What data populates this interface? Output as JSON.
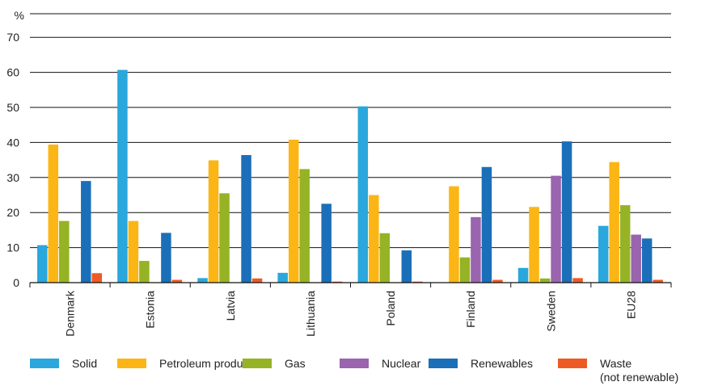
{
  "chart_data": {
    "type": "bar",
    "ylabel": "%",
    "ylim": [
      0,
      75
    ],
    "yticks": [
      0,
      10,
      20,
      30,
      40,
      50,
      60,
      70
    ],
    "grid": true,
    "legend_position": "bottom",
    "categories": [
      "Denmark",
      "Estonia",
      "Latvia",
      "Lithuania",
      "Poland",
      "Finland",
      "Sweden",
      "EU28"
    ],
    "series": [
      {
        "name": "Solid",
        "name_line2": "",
        "color": "#2aa7dc",
        "values": [
          10.7,
          60.7,
          1.3,
          2.8,
          50.3,
          0,
          4.2,
          16.2
        ]
      },
      {
        "name": "Petroleum products",
        "name_line2": "",
        "color": "#fbb615",
        "values": [
          39.4,
          17.6,
          34.9,
          40.8,
          25.0,
          27.5,
          21.6,
          34.4
        ]
      },
      {
        "name": "Gas",
        "name_line2": "",
        "color": "#95b324",
        "values": [
          17.6,
          6.2,
          25.5,
          32.4,
          14.1,
          7.2,
          1.2,
          22.1
        ]
      },
      {
        "name": "Nuclear",
        "name_line2": "",
        "color": "#9a64ae",
        "values": [
          0,
          0,
          0,
          0,
          0,
          18.7,
          30.5,
          13.7
        ]
      },
      {
        "name": "Renewables",
        "name_line2": "",
        "color": "#1b6fb8",
        "values": [
          29.0,
          14.2,
          36.4,
          22.5,
          9.2,
          33.0,
          40.3,
          12.6
        ]
      },
      {
        "name": "Waste",
        "name_line2": "(not renewable)",
        "color": "#ee5a24",
        "values": [
          2.7,
          0.8,
          1.2,
          0.3,
          0.3,
          0.8,
          1.3,
          0.8
        ]
      }
    ]
  }
}
